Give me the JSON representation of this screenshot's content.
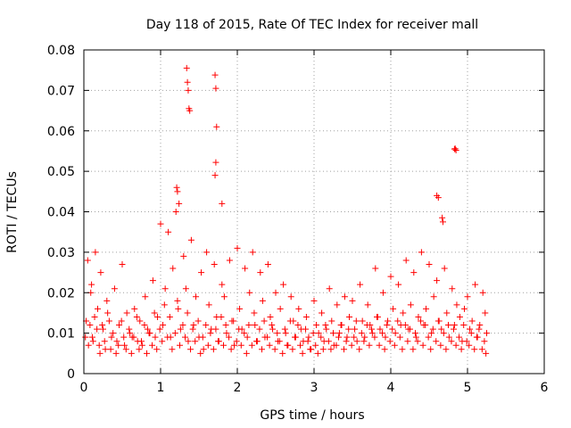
{
  "chart_data": {
    "type": "scatter",
    "title": "Day 118 of 2015, Rate Of TEC Index for receiver mall",
    "xlabel": "GPS time / hours",
    "ylabel": "ROTI / TECUs",
    "xlim": [
      0,
      6
    ],
    "ylim": [
      0,
      0.08
    ],
    "x_ticks": [
      "0",
      "1",
      "2",
      "3",
      "4",
      "5",
      "6"
    ],
    "y_ticks": [
      "0",
      "0.01",
      "0.02",
      "0.03",
      "0.04",
      "0.05",
      "0.06",
      "0.07",
      "0.08"
    ],
    "grid": true,
    "marker": "+",
    "color": "#ff0000",
    "series": [
      {
        "x": [
          0.02,
          0.05,
          0.08,
          0.1,
          0.12,
          0.15,
          0.18,
          0.2,
          0.22,
          0.25,
          0.28,
          0.3,
          0.33,
          0.36,
          0.4,
          0.43,
          0.46,
          0.5,
          0.53,
          0.56,
          0.6,
          0.63,
          0.66,
          0.7,
          0.73,
          0.76,
          0.8,
          0.83,
          0.86,
          0.9,
          0.93,
          0.96,
          1.0,
          1.03,
          1.06,
          1.1,
          1.13,
          1.16,
          1.2,
          1.23,
          1.26,
          1.3,
          1.33,
          1.36,
          1.4,
          1.43,
          1.46,
          1.5,
          1.53,
          1.56,
          1.6,
          1.63,
          1.66,
          1.7,
          1.73,
          1.76,
          1.8,
          1.83,
          1.86,
          1.9,
          1.93,
          1.96,
          2.0,
          2.03,
          2.06,
          2.1,
          2.13,
          2.16,
          2.2,
          2.23,
          2.26,
          2.3,
          2.33,
          2.36,
          2.4,
          2.43,
          2.46,
          2.5,
          2.53,
          2.56,
          2.6,
          2.63,
          2.66,
          2.7,
          2.73,
          2.76,
          2.8,
          2.83,
          2.86,
          2.9,
          2.93,
          2.96,
          3.0,
          3.03,
          3.06,
          3.1,
          3.13,
          3.16,
          3.2,
          3.23,
          3.26,
          3.3,
          3.33,
          3.36,
          3.4,
          3.43,
          3.46,
          3.5,
          3.53,
          3.56,
          3.6,
          3.63,
          3.66,
          3.7,
          3.73,
          3.76,
          3.8,
          3.83,
          3.86,
          3.9,
          3.93,
          3.96,
          4.0,
          4.03,
          4.06,
          4.1,
          4.13,
          4.16,
          4.2,
          4.23,
          4.26,
          4.3,
          4.33,
          4.36,
          4.4,
          4.43,
          4.46,
          4.5,
          4.53,
          4.56,
          4.6,
          4.63,
          4.66,
          4.7,
          4.73,
          4.76,
          4.8,
          4.83,
          4.86,
          4.9,
          4.93,
          4.96,
          5.0,
          5.03,
          5.06,
          5.1,
          5.13,
          5.16,
          5.2,
          5.23,
          5.25,
          0.03,
          0.06,
          0.09,
          0.11,
          0.14,
          0.17,
          0.21,
          0.24,
          0.27,
          0.31,
          0.35,
          0.38,
          0.42,
          0.45,
          0.49,
          0.52,
          0.55,
          0.59,
          0.62,
          0.65,
          0.69,
          0.72,
          0.75,
          0.79,
          0.82,
          0.85,
          0.89,
          0.92,
          0.95,
          0.99,
          1.02,
          1.05,
          1.09,
          1.12,
          1.15,
          1.19,
          1.22,
          1.25,
          1.29,
          1.32,
          1.35,
          1.39,
          1.42,
          1.45,
          1.49,
          1.52,
          1.55,
          1.59,
          1.62,
          1.65,
          1.69,
          1.72,
          1.75,
          1.79,
          1.82,
          1.85,
          1.89,
          1.92,
          1.95,
          1.99,
          2.02,
          2.05,
          2.09,
          2.12,
          2.15,
          2.19,
          2.22,
          2.25,
          2.29,
          2.32,
          2.35,
          2.39,
          2.42,
          2.45,
          2.49,
          2.52,
          2.55,
          2.59,
          2.62,
          2.65,
          2.69,
          2.72,
          2.75,
          2.79,
          2.82,
          2.85,
          2.89,
          2.92,
          2.95,
          2.99,
          3.02,
          3.05,
          3.09,
          3.12,
          3.15,
          3.19,
          3.22,
          3.25,
          3.29,
          3.32,
          3.35,
          3.39,
          3.42,
          3.45,
          3.49,
          3.52,
          3.55,
          3.59,
          3.62,
          3.65,
          3.69,
          3.72,
          3.75,
          3.79,
          3.82,
          3.85,
          3.89,
          3.92,
          3.95,
          3.99,
          4.02,
          4.05,
          4.09,
          4.12,
          4.15,
          4.19,
          4.22,
          4.25,
          4.29,
          4.32,
          4.35,
          4.39,
          4.42,
          4.45,
          4.49,
          4.52,
          4.55,
          4.59,
          4.62,
          4.65,
          4.69,
          4.72,
          4.75,
          4.79,
          4.82,
          4.85,
          4.89,
          4.92,
          4.95,
          4.99,
          5.02,
          5.05,
          5.09,
          5.12,
          5.15,
          5.19,
          5.22,
          5.24,
          1.34,
          1.35,
          1.36,
          1.37,
          1.38,
          1.71,
          1.72,
          1.73,
          1.72,
          1.71,
          1.8,
          1.21,
          1.22,
          1.24,
          4.83,
          4.85,
          4.84,
          4.6,
          4.62,
          4.67,
          4.68
        ],
        "y": [
          0.009,
          0.028,
          0.012,
          0.022,
          0.008,
          0.03,
          0.016,
          0.007,
          0.025,
          0.011,
          0.006,
          0.018,
          0.013,
          0.009,
          0.021,
          0.008,
          0.012,
          0.027,
          0.007,
          0.015,
          0.01,
          0.009,
          0.016,
          0.008,
          0.013,
          0.007,
          0.019,
          0.011,
          0.01,
          0.023,
          0.009,
          0.014,
          0.037,
          0.012,
          0.021,
          0.035,
          0.009,
          0.026,
          0.04,
          0.016,
          0.011,
          0.029,
          0.021,
          0.008,
          0.033,
          0.012,
          0.019,
          0.009,
          0.025,
          0.006,
          0.03,
          0.017,
          0.011,
          0.027,
          0.014,
          0.008,
          0.022,
          0.019,
          0.01,
          0.028,
          0.013,
          0.007,
          0.031,
          0.016,
          0.011,
          0.026,
          0.009,
          0.02,
          0.03,
          0.012,
          0.008,
          0.025,
          0.018,
          0.009,
          0.027,
          0.014,
          0.011,
          0.02,
          0.008,
          0.016,
          0.022,
          0.01,
          0.007,
          0.019,
          0.013,
          0.009,
          0.016,
          0.011,
          0.008,
          0.014,
          0.009,
          0.006,
          0.018,
          0.012,
          0.01,
          0.015,
          0.008,
          0.011,
          0.021,
          0.013,
          0.007,
          0.017,
          0.01,
          0.012,
          0.019,
          0.009,
          0.014,
          0.018,
          0.011,
          0.008,
          0.022,
          0.013,
          0.009,
          0.017,
          0.012,
          0.01,
          0.026,
          0.014,
          0.011,
          0.02,
          0.009,
          0.013,
          0.024,
          0.016,
          0.01,
          0.022,
          0.012,
          0.015,
          0.028,
          0.011,
          0.017,
          0.025,
          0.009,
          0.014,
          0.03,
          0.012,
          0.016,
          0.027,
          0.01,
          0.019,
          0.023,
          0.013,
          0.011,
          0.026,
          0.015,
          0.009,
          0.021,
          0.012,
          0.017,
          0.014,
          0.008,
          0.016,
          0.019,
          0.011,
          0.013,
          0.022,
          0.009,
          0.012,
          0.02,
          0.015,
          0.01,
          0.013,
          0.007,
          0.02,
          0.009,
          0.014,
          0.011,
          0.005,
          0.012,
          0.008,
          0.015,
          0.006,
          0.01,
          0.005,
          0.007,
          0.013,
          0.009,
          0.006,
          0.011,
          0.005,
          0.009,
          0.014,
          0.006,
          0.008,
          0.012,
          0.005,
          0.01,
          0.007,
          0.015,
          0.006,
          0.011,
          0.008,
          0.017,
          0.009,
          0.014,
          0.006,
          0.01,
          0.018,
          0.007,
          0.012,
          0.009,
          0.015,
          0.006,
          0.011,
          0.008,
          0.013,
          0.005,
          0.009,
          0.012,
          0.007,
          0.01,
          0.006,
          0.011,
          0.008,
          0.014,
          0.007,
          0.012,
          0.009,
          0.006,
          0.013,
          0.008,
          0.011,
          0.007,
          0.01,
          0.005,
          0.012,
          0.007,
          0.015,
          0.008,
          0.011,
          0.006,
          0.013,
          0.009,
          0.007,
          0.012,
          0.006,
          0.01,
          0.008,
          0.005,
          0.011,
          0.007,
          0.013,
          0.006,
          0.009,
          0.012,
          0.007,
          0.005,
          0.011,
          0.008,
          0.006,
          0.01,
          0.007,
          0.005,
          0.009,
          0.006,
          0.012,
          0.008,
          0.006,
          0.01,
          0.007,
          0.009,
          0.012,
          0.006,
          0.008,
          0.011,
          0.007,
          0.009,
          0.013,
          0.006,
          0.01,
          0.008,
          0.012,
          0.007,
          0.011,
          0.009,
          0.014,
          0.007,
          0.01,
          0.006,
          0.012,
          0.008,
          0.011,
          0.007,
          0.013,
          0.009,
          0.006,
          0.012,
          0.008,
          0.011,
          0.006,
          0.01,
          0.008,
          0.013,
          0.007,
          0.012,
          0.009,
          0.006,
          0.011,
          0.008,
          0.013,
          0.007,
          0.01,
          0.006,
          0.012,
          0.008,
          0.011,
          0.007,
          0.009,
          0.006,
          0.012,
          0.008,
          0.007,
          0.01,
          0.006,
          0.009,
          0.011,
          0.006,
          0.008,
          0.005,
          0.0755,
          0.072,
          0.07,
          0.0655,
          0.065,
          0.0738,
          0.0705,
          0.061,
          0.0522,
          0.049,
          0.042,
          0.046,
          0.045,
          0.042,
          0.0555,
          0.0552,
          0.0556,
          0.044,
          0.0435,
          0.0385,
          0.0375
        ]
      }
    ]
  }
}
